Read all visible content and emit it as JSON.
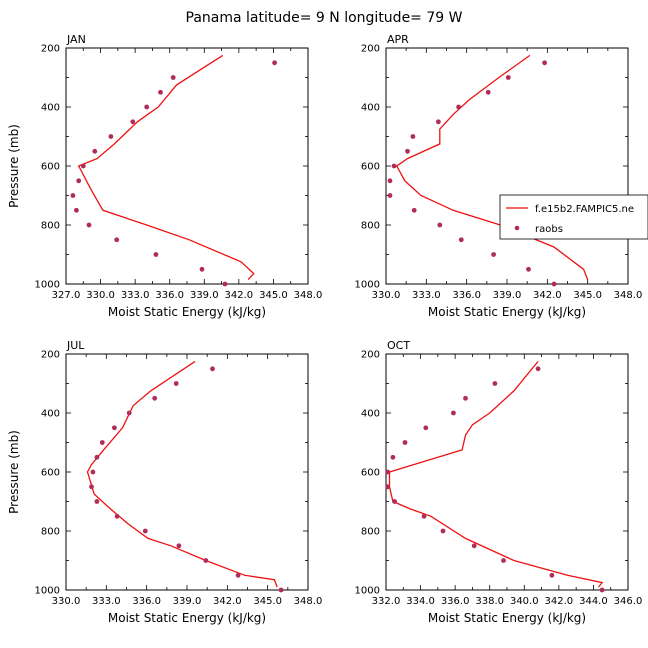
{
  "title": "Panama  latitude= 9 N longitude= 79 W",
  "xlabel": "Moist Static Energy (kJ/kg)",
  "ylabel": "Pressure (mb)",
  "legend": {
    "placement": "right-middle",
    "model_label": "f.e15b2.FAMPIC5.ne",
    "obs_label": "raobs"
  },
  "colors": {
    "model": "#ee1111",
    "obs": "#b02c5a",
    "axis": "#000000"
  },
  "chart_data": [
    {
      "type": "line",
      "label": "JAN",
      "xlim": [
        327,
        348
      ],
      "ylim": [
        1000,
        200
      ],
      "xticks": [
        327,
        330,
        333,
        336,
        339,
        342,
        345,
        348
      ],
      "xtick_labels": [
        "327.0",
        "330.0",
        "333.0",
        "336.0",
        "339.0",
        "342.0",
        "345.0",
        "348.0"
      ],
      "yticks": [
        200,
        400,
        600,
        800,
        1000
      ],
      "ytick_labels": [
        "200",
        "400",
        "600",
        "800",
        "1000"
      ],
      "series": [
        {
          "name": "f.e15b2.FAMPIC5.ne",
          "kind": "line",
          "x": [
            340.6,
            336.6,
            335.0,
            333.2,
            331.2,
            329.7,
            328.1,
            329.1,
            330.2,
            334.0,
            337.7,
            342.2,
            343.3,
            342.8
          ],
          "y": [
            225,
            325,
            400,
            450,
            525,
            575,
            600,
            675,
            750,
            800,
            850,
            925,
            965,
            985
          ]
        },
        {
          "name": "raobs",
          "kind": "scatter",
          "x": [
            345.1,
            336.3,
            335.2,
            334.0,
            332.8,
            330.9,
            329.5,
            328.5,
            328.1,
            327.6,
            327.9,
            329.0,
            331.4,
            334.8,
            338.8,
            340.8
          ],
          "y": [
            250,
            300,
            350,
            400,
            450,
            500,
            550,
            600,
            650,
            700,
            750,
            800,
            850,
            900,
            950,
            1000
          ]
        }
      ]
    },
    {
      "type": "line",
      "label": "APR",
      "xlim": [
        330,
        348
      ],
      "ylim": [
        1000,
        200
      ],
      "xticks": [
        330,
        333,
        336,
        339,
        342,
        345,
        348
      ],
      "xtick_labels": [
        "330.0",
        "333.0",
        "336.0",
        "339.0",
        "342.0",
        "345.0",
        "348.0"
      ],
      "yticks": [
        200,
        400,
        600,
        800,
        1000
      ],
      "ytick_labels": [
        "200",
        "400",
        "600",
        "800",
        "1000"
      ],
      "series": [
        {
          "name": "f.e15b2.FAMPIC5.ne",
          "kind": "line",
          "x": [
            340.7,
            338.4,
            336.2,
            335.0,
            334.0,
            334.0,
            331.6,
            330.8,
            331.4,
            332.6,
            335.0,
            338.5,
            342.5,
            344.7,
            345.0
          ],
          "y": [
            225,
            300,
            375,
            425,
            475,
            525,
            575,
            600,
            650,
            700,
            750,
            800,
            875,
            950,
            985
          ]
        },
        {
          "name": "raobs",
          "kind": "scatter",
          "x": [
            341.8,
            339.1,
            337.6,
            335.4,
            333.9,
            332.0,
            331.6,
            330.6,
            330.3,
            330.3,
            332.1,
            334.0,
            335.6,
            338.0,
            340.6,
            342.5
          ],
          "y": [
            250,
            300,
            350,
            400,
            450,
            500,
            550,
            600,
            650,
            700,
            750,
            800,
            850,
            900,
            950,
            1000
          ]
        }
      ]
    },
    {
      "type": "line",
      "label": "JUL",
      "xlim": [
        330,
        348
      ],
      "ylim": [
        1000,
        200
      ],
      "xticks": [
        330,
        333,
        336,
        339,
        342,
        345,
        348
      ],
      "xtick_labels": [
        "330.0",
        "333.0",
        "336.0",
        "339.0",
        "342.0",
        "345.0",
        "348.0"
      ],
      "yticks": [
        200,
        400,
        600,
        800,
        1000
      ],
      "ytick_labels": [
        "200",
        "400",
        "600",
        "800",
        "1000"
      ],
      "series": [
        {
          "name": "f.e15b2.FAMPIC5.ne",
          "kind": "line",
          "x": [
            339.6,
            336.3,
            335.0,
            334.2,
            332.8,
            331.9,
            331.6,
            332.1,
            333.3,
            334.6,
            336.1,
            337.8,
            340.4,
            343.3,
            345.5,
            345.7
          ],
          "y": [
            225,
            325,
            375,
            450,
            525,
            575,
            600,
            675,
            725,
            775,
            825,
            850,
            900,
            950,
            965,
            990
          ]
        },
        {
          "name": "raobs",
          "kind": "scatter",
          "x": [
            340.9,
            338.2,
            336.6,
            334.7,
            333.6,
            332.7,
            332.3,
            332.0,
            331.9,
            332.3,
            333.8,
            335.9,
            338.4,
            340.4,
            342.8,
            346.0
          ],
          "y": [
            250,
            300,
            350,
            400,
            450,
            500,
            550,
            600,
            650,
            700,
            750,
            800,
            850,
            900,
            950,
            1000
          ]
        }
      ]
    },
    {
      "type": "line",
      "label": "OCT",
      "xlim": [
        332,
        346
      ],
      "ylim": [
        1000,
        200
      ],
      "xticks": [
        332,
        334,
        336,
        338,
        340,
        342,
        344,
        346
      ],
      "xtick_labels": [
        "332.0",
        "334.0",
        "336.0",
        "338.0",
        "340.0",
        "342.0",
        "344.0",
        "346.0"
      ],
      "yticks": [
        200,
        400,
        600,
        800,
        1000
      ],
      "ytick_labels": [
        "200",
        "400",
        "600",
        "800",
        "1000"
      ],
      "series": [
        {
          "name": "f.e15b2.FAMPIC5.ne",
          "kind": "line",
          "x": [
            340.8,
            339.4,
            338.0,
            337.0,
            336.6,
            336.4,
            332.2,
            332.2,
            332.4,
            333.4,
            334.6,
            336.6,
            339.4,
            342.5,
            344.5,
            344.3
          ],
          "y": [
            225,
            325,
            400,
            440,
            475,
            525,
            600,
            650,
            700,
            725,
            750,
            825,
            900,
            950,
            975,
            990
          ]
        },
        {
          "name": "raobs",
          "kind": "scatter",
          "x": [
            340.8,
            338.3,
            336.6,
            335.9,
            334.3,
            333.1,
            332.4,
            332.1,
            332.1,
            332.5,
            334.2,
            335.3,
            337.1,
            338.8,
            341.6,
            344.5
          ],
          "y": [
            250,
            300,
            350,
            400,
            450,
            500,
            550,
            600,
            650,
            700,
            750,
            800,
            850,
            900,
            950,
            1000
          ]
        }
      ]
    }
  ]
}
